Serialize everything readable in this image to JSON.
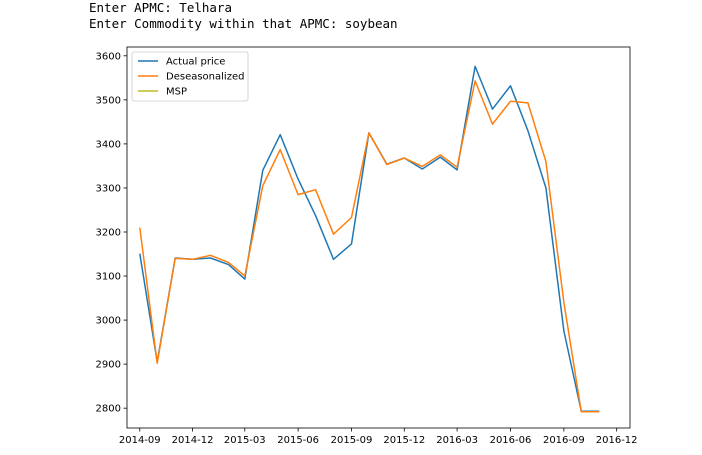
{
  "console": {
    "lines": [
      "Enter APMC: Telhara",
      "Enter Commodity within that APMC: soybean"
    ]
  },
  "chart_data": {
    "type": "line",
    "title": "",
    "xlabel": "",
    "ylabel": "",
    "x_ticks": [
      "2014-09",
      "2014-12",
      "2015-03",
      "2015-06",
      "2015-09",
      "2015-12",
      "2016-03",
      "2016-06",
      "2016-09",
      "2016-12"
    ],
    "y_ticks": [
      2800,
      2900,
      3000,
      3100,
      3200,
      3300,
      3400,
      3500,
      3600
    ],
    "xlim": [
      "2014-08-10",
      "2016-12-24"
    ],
    "ylim": [
      2755,
      3620
    ],
    "grid": false,
    "legend_position": "top-left",
    "series": [
      {
        "name": "Actual price",
        "color": "#1f77b4",
        "points": [
          [
            "2014-09-01",
            3151
          ],
          [
            "2014-10-01",
            2905
          ],
          [
            "2014-11-01",
            3141
          ],
          [
            "2014-12-01",
            3138
          ],
          [
            "2015-01-01",
            3141
          ],
          [
            "2015-02-01",
            3126
          ],
          [
            "2015-03-01",
            3093
          ],
          [
            "2015-04-01",
            3340
          ],
          [
            "2015-05-01",
            3421
          ],
          [
            "2015-06-01",
            3320
          ],
          [
            "2015-07-01",
            3237
          ],
          [
            "2015-08-01",
            3138
          ],
          [
            "2015-09-01",
            3173
          ],
          [
            "2015-10-01",
            3425
          ],
          [
            "2015-11-01",
            3354
          ],
          [
            "2015-12-01",
            3368
          ],
          [
            "2016-01-01",
            3343
          ],
          [
            "2016-02-01",
            3370
          ],
          [
            "2016-03-01",
            3341
          ],
          [
            "2016-04-01",
            3576
          ],
          [
            "2016-05-01",
            3479
          ],
          [
            "2016-06-01",
            3532
          ],
          [
            "2016-07-01",
            3430
          ],
          [
            "2016-08-01",
            3300
          ],
          [
            "2016-09-01",
            2975
          ],
          [
            "2016-10-01",
            2793
          ],
          [
            "2016-11-01",
            2793
          ]
        ]
      },
      {
        "name": "Deseasonalized",
        "color": "#ff7f0e",
        "points": [
          [
            "2014-09-01",
            3210
          ],
          [
            "2014-10-01",
            2902
          ],
          [
            "2014-11-01",
            3140
          ],
          [
            "2014-12-01",
            3138
          ],
          [
            "2015-01-01",
            3147
          ],
          [
            "2015-02-01",
            3131
          ],
          [
            "2015-03-01",
            3100
          ],
          [
            "2015-04-01",
            3305
          ],
          [
            "2015-05-01",
            3387
          ],
          [
            "2015-06-01",
            3285
          ],
          [
            "2015-07-01",
            3296
          ],
          [
            "2015-08-01",
            3195
          ],
          [
            "2015-09-01",
            3233
          ],
          [
            "2015-10-01",
            3425
          ],
          [
            "2015-11-01",
            3353
          ],
          [
            "2015-12-01",
            3368
          ],
          [
            "2016-01-01",
            3349
          ],
          [
            "2016-02-01",
            3375
          ],
          [
            "2016-03-01",
            3347
          ],
          [
            "2016-04-01",
            3543
          ],
          [
            "2016-05-01",
            3445
          ],
          [
            "2016-06-01",
            3497
          ],
          [
            "2016-07-01",
            3493
          ],
          [
            "2016-08-01",
            3360
          ],
          [
            "2016-09-01",
            3040
          ],
          [
            "2016-10-01",
            2792
          ],
          [
            "2016-11-01",
            2792
          ]
        ]
      },
      {
        "name": "MSP",
        "color": "#bcbd22",
        "points": []
      }
    ]
  }
}
